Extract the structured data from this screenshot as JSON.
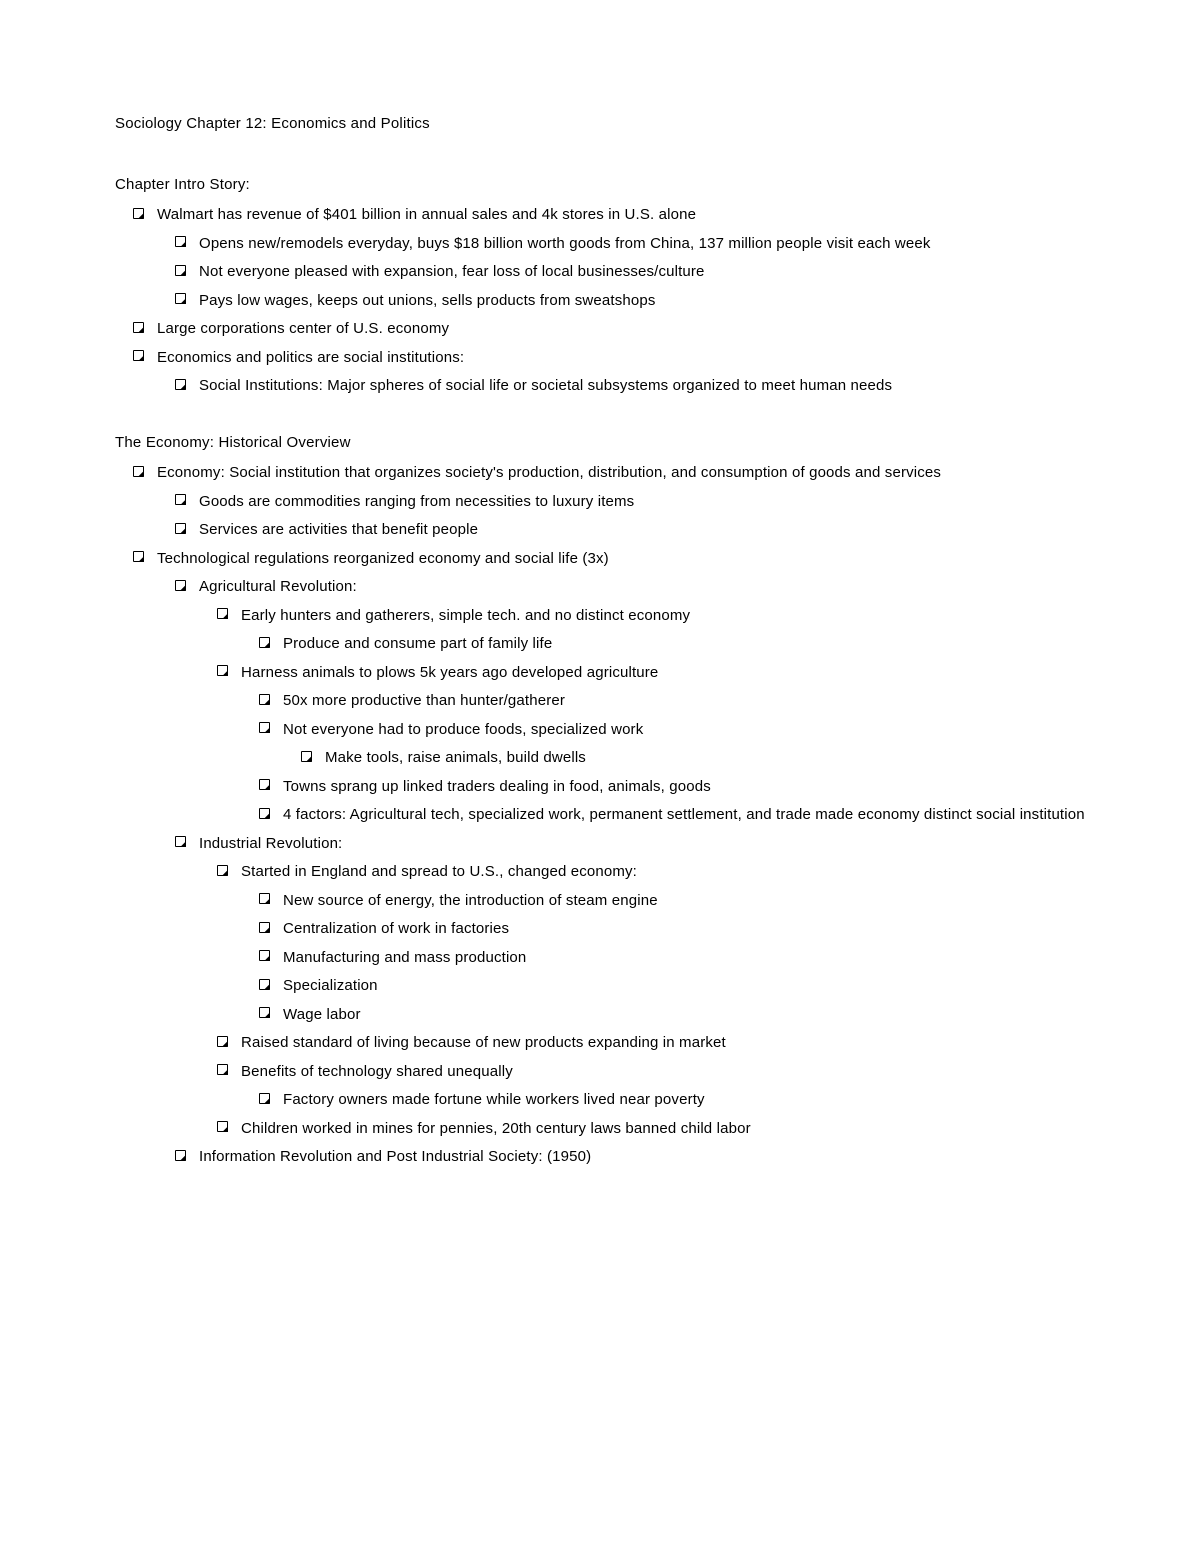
{
  "title": "Sociology Chapter 12: Economics and Politics",
  "sections": [
    {
      "heading": "Chapter Intro Story:",
      "items": [
        {
          "text": "Walmart has revenue of $401 billion in annual sales and 4k stores in U.S. alone",
          "children": [
            {
              "text": "Opens new/remodels everyday, buys $18 billion worth goods from China, 137 million people visit each week"
            },
            {
              "text": "Not everyone pleased with expansion, fear loss of local businesses/culture"
            },
            {
              "text": "Pays low wages, keeps out unions, sells products from sweatshops"
            }
          ]
        },
        {
          "text": "Large corporations center of U.S. economy"
        },
        {
          "text": "Economics and politics are social institutions:",
          "children": [
            {
              "text": "Social Institutions: Major spheres of social life or societal subsystems organized to meet human needs"
            }
          ]
        }
      ]
    },
    {
      "heading": "The Economy: Historical Overview",
      "items": [
        {
          "text": "Economy: Social institution that organizes society's production, distribution, and consumption of goods and services",
          "children": [
            {
              "text": "Goods are commodities ranging from necessities to luxury items"
            },
            {
              "text": "Services are activities that benefit people"
            }
          ]
        },
        {
          "text": "Technological regulations reorganized economy and social life (3x)",
          "children": [
            {
              "text": "Agricultural Revolution:",
              "children": [
                {
                  "text": "Early hunters and gatherers, simple tech. and no distinct economy",
                  "children": [
                    {
                      "text": "Produce and consume part of family life"
                    }
                  ]
                },
                {
                  "text": "Harness animals to plows 5k years ago developed agriculture",
                  "children": [
                    {
                      "text": "50x more productive than hunter/gatherer"
                    },
                    {
                      "text": "Not everyone had to produce foods, specialized work",
                      "children": [
                        {
                          "text": "Make tools, raise animals, build dwells"
                        }
                      ]
                    },
                    {
                      "text": "Towns sprang up linked traders dealing in food, animals, goods"
                    },
                    {
                      "text": "4 factors: Agricultural tech, specialized work, permanent settlement, and trade made economy distinct social institution"
                    }
                  ]
                }
              ]
            },
            {
              "text": "Industrial Revolution:",
              "children": [
                {
                  "text": "Started in England and spread to U.S., changed economy:",
                  "children": [
                    {
                      "text": "New source of energy, the introduction of steam engine"
                    },
                    {
                      "text": "Centralization of work in factories"
                    },
                    {
                      "text": "Manufacturing and mass production"
                    },
                    {
                      "text": "Specialization"
                    },
                    {
                      "text": "Wage labor"
                    }
                  ]
                },
                {
                  "text": "Raised standard of living because of new products expanding in market"
                },
                {
                  "text": "Benefits of technology shared unequally",
                  "children": [
                    {
                      "text": "Factory owners made fortune while workers lived near poverty"
                    }
                  ]
                },
                {
                  "text": "Children worked in mines for pennies, 20th century laws banned child labor"
                }
              ]
            },
            {
              "text": "Information Revolution and Post Industrial Society: (1950)"
            }
          ]
        }
      ]
    }
  ]
}
